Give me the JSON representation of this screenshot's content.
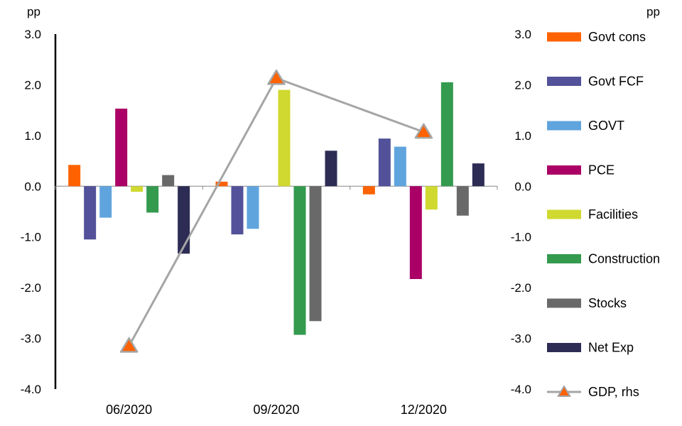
{
  "chart_data": {
    "type": "bar",
    "categories": [
      "06/2020",
      "09/2020",
      "12/2020"
    ],
    "left_axis": {
      "unit": "pp",
      "ylim": [
        -4,
        3
      ],
      "ticks": [
        "3.0",
        "2.0",
        "1.0",
        "0.0",
        "-1.0",
        "-2.0",
        "-3.0",
        "-4.0"
      ]
    },
    "right_axis": {
      "unit": "pp",
      "ylim": [
        -4,
        3
      ],
      "ticks": [
        "3.0",
        "2.0",
        "1.0",
        "0.0",
        "-1.0",
        "-2.0",
        "-3.0",
        "-4.0"
      ]
    },
    "series": [
      {
        "name": "Govt cons",
        "color": "#FF6200",
        "values": [
          0.42,
          0.09,
          -0.16
        ]
      },
      {
        "name": "Govt FCF",
        "color": "#525199",
        "values": [
          -1.05,
          -0.95,
          0.94
        ]
      },
      {
        "name": "GOVT",
        "color": "#60A4DE",
        "values": [
          -0.62,
          -0.84,
          0.78
        ]
      },
      {
        "name": "PCE",
        "color": "#AB0066",
        "values": [
          1.53,
          0,
          -1.83
        ]
      },
      {
        "name": "Facilities",
        "color": "#D0D92F",
        "values": [
          -0.11,
          1.9,
          -0.46
        ]
      },
      {
        "name": "Construction",
        "color": "#349A4E",
        "values": [
          -0.52,
          -2.93,
          2.05
        ]
      },
      {
        "name": "Stocks",
        "color": "#696969",
        "values": [
          0.22,
          -2.66,
          -0.58
        ]
      },
      {
        "name": "Net Exp",
        "color": "#2C2C54",
        "values": [
          -1.33,
          0.7,
          0.45
        ]
      }
    ],
    "line": {
      "name": "GDP, rhs",
      "axis": "right",
      "line_color": "#A5A5A5",
      "marker_color": "#FF6200",
      "values": [
        -3.15,
        2.13,
        1.07
      ]
    },
    "legend_position": "right",
    "grid": false
  }
}
